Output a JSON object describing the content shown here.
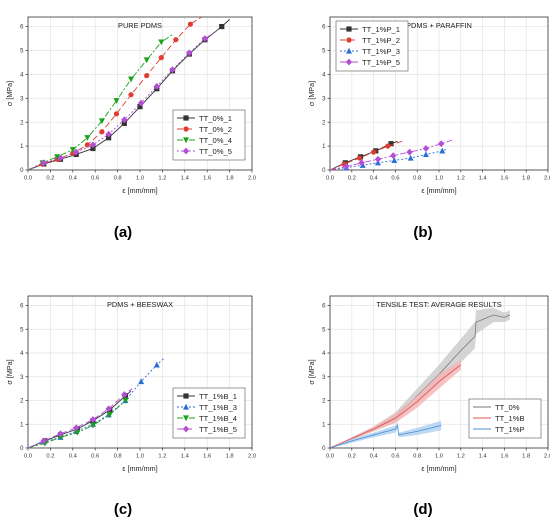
{
  "chart_data": [
    {
      "panel": "a",
      "type": "line",
      "title": "PURE PDMS",
      "xlabel": "ε [mm/mm]",
      "ylabel": "σ [MPa]",
      "xlim": [
        0,
        2.0
      ],
      "ylim": [
        0,
        6.4
      ],
      "xticks": [
        "0.0",
        "0.2",
        "0.4",
        "0.6",
        "0.8",
        "1.0",
        "1.2",
        "1.4",
        "1.6",
        "1.8",
        "2.0"
      ],
      "yticks": [
        "0",
        "1",
        "2",
        "3",
        "4",
        "5",
        "6"
      ],
      "legend": "bottom-right",
      "grid": true,
      "caption": "(a)",
      "series": [
        {
          "name": "TT_0%_1",
          "color": "#333333",
          "marker": "square",
          "dash": "solid",
          "x": [
            0,
            0.14,
            0.29,
            0.43,
            0.58,
            0.72,
            0.86,
            1.0,
            1.15,
            1.29,
            1.44,
            1.58,
            1.73,
            1.8
          ],
          "y": [
            0,
            0.25,
            0.45,
            0.65,
            0.9,
            1.35,
            1.95,
            2.65,
            3.4,
            4.15,
            4.85,
            5.45,
            6.0,
            6.3
          ]
        },
        {
          "name": "TT_0%_2",
          "color": "#e03c31",
          "marker": "circle",
          "dash": "6,3",
          "x": [
            0,
            0.13,
            0.26,
            0.4,
            0.53,
            0.66,
            0.79,
            0.92,
            1.06,
            1.19,
            1.32,
            1.45,
            1.55
          ],
          "y": [
            0,
            0.25,
            0.45,
            0.7,
            1.05,
            1.6,
            2.35,
            3.15,
            3.95,
            4.7,
            5.45,
            6.1,
            6.4
          ]
        },
        {
          "name": "TT_0%_4",
          "color": "#1aa31a",
          "marker": "triangle-down",
          "dash": "6,2,2,2",
          "x": [
            0,
            0.13,
            0.26,
            0.4,
            0.53,
            0.66,
            0.79,
            0.92,
            1.06,
            1.19,
            1.3
          ],
          "y": [
            0,
            0.3,
            0.55,
            0.85,
            1.35,
            2.05,
            2.9,
            3.8,
            4.6,
            5.35,
            5.7
          ]
        },
        {
          "name": "TT_0%_5",
          "color": "#b54ed6",
          "marker": "diamond",
          "dash": "2,2",
          "x": [
            0,
            0.14,
            0.29,
            0.43,
            0.58,
            0.72,
            0.86,
            1.01,
            1.15,
            1.29,
            1.44,
            1.58,
            1.68
          ],
          "y": [
            0,
            0.3,
            0.5,
            0.75,
            1.05,
            1.5,
            2.1,
            2.8,
            3.5,
            4.2,
            4.9,
            5.5,
            5.8
          ]
        }
      ]
    },
    {
      "panel": "b",
      "type": "line",
      "title": "PDMS + PARAFFIN",
      "xlabel": "ε [mm/mm]",
      "ylabel": "σ [MPa]",
      "xlim": [
        0,
        2.0
      ],
      "ylim": [
        0,
        6.4
      ],
      "xticks": [
        "0.0",
        "0.2",
        "0.4",
        "0.6",
        "0.8",
        "1.0",
        "1.2",
        "1.4",
        "1.6",
        "1.8",
        "2.0"
      ],
      "yticks": [
        "0",
        "1",
        "2",
        "3",
        "4",
        "5",
        "6"
      ],
      "legend": "top-left",
      "grid": true,
      "caption": "(b)",
      "series": [
        {
          "name": "TT_1%P_1",
          "color": "#333333",
          "marker": "square",
          "dash": "solid",
          "x": [
            0,
            0.14,
            0.28,
            0.42,
            0.56,
            0.62
          ],
          "y": [
            0,
            0.3,
            0.55,
            0.8,
            1.1,
            1.2
          ]
        },
        {
          "name": "TT_1%P_2",
          "color": "#e03c31",
          "marker": "circle",
          "dash": "6,3",
          "x": [
            0,
            0.13,
            0.27,
            0.4,
            0.53,
            0.66
          ],
          "y": [
            0,
            0.25,
            0.5,
            0.75,
            1.0,
            1.2
          ]
        },
        {
          "name": "TT_1%P_3",
          "color": "#2a6fd6",
          "marker": "triangle",
          "dash": "2,2",
          "x": [
            0,
            0.15,
            0.3,
            0.44,
            0.59,
            0.74,
            0.88,
            1.03,
            1.08
          ],
          "y": [
            0,
            0.1,
            0.2,
            0.3,
            0.4,
            0.5,
            0.65,
            0.8,
            0.9
          ]
        },
        {
          "name": "TT_1%P_5",
          "color": "#b54ed6",
          "marker": "diamond",
          "dash": "6,2,2,2",
          "x": [
            0,
            0.15,
            0.29,
            0.44,
            0.58,
            0.73,
            0.88,
            1.02,
            1.12
          ],
          "y": [
            0,
            0.15,
            0.3,
            0.45,
            0.6,
            0.75,
            0.9,
            1.1,
            1.25
          ]
        }
      ]
    },
    {
      "panel": "c",
      "type": "line",
      "title": "PDMS + BEESWAX",
      "xlabel": "ε [mm/mm]",
      "ylabel": "σ [MPa]",
      "xlim": [
        0,
        2.0
      ],
      "ylim": [
        0,
        6.4
      ],
      "xticks": [
        "0.0",
        "0.2",
        "0.4",
        "0.6",
        "0.8",
        "1.0",
        "1.2",
        "1.4",
        "1.6",
        "1.8",
        "2.0"
      ],
      "yticks": [
        "0",
        "1",
        "2",
        "3",
        "4",
        "5",
        "6"
      ],
      "legend": "bottom-right",
      "grid": true,
      "caption": "(c)",
      "series": [
        {
          "name": "TT_1%B_1",
          "color": "#333333",
          "marker": "square",
          "dash": "solid",
          "x": [
            0,
            0.15,
            0.29,
            0.44,
            0.58,
            0.73,
            0.87,
            0.92
          ],
          "y": [
            0,
            0.3,
            0.55,
            0.8,
            1.15,
            1.6,
            2.2,
            2.4
          ]
        },
        {
          "name": "TT_1%B_3",
          "color": "#2a6fd6",
          "marker": "triangle",
          "dash": "2,2",
          "x": [
            0,
            0.14,
            0.29,
            0.43,
            0.58,
            0.72,
            0.87,
            1.01,
            1.15,
            1.22
          ],
          "y": [
            0,
            0.25,
            0.45,
            0.7,
            1.0,
            1.4,
            2.0,
            2.8,
            3.5,
            3.8
          ]
        },
        {
          "name": "TT_1%B_4",
          "color": "#1aa31a",
          "marker": "triangle-down",
          "dash": "6,2,2,2",
          "x": [
            0,
            0.15,
            0.29,
            0.44,
            0.58,
            0.73,
            0.87,
            0.9
          ],
          "y": [
            0,
            0.2,
            0.45,
            0.65,
            0.95,
            1.4,
            2.0,
            2.1
          ]
        },
        {
          "name": "TT_1%B_5",
          "color": "#b54ed6",
          "marker": "diamond",
          "dash": "6,3",
          "x": [
            0,
            0.14,
            0.29,
            0.43,
            0.58,
            0.72,
            0.86,
            0.93
          ],
          "y": [
            0,
            0.3,
            0.6,
            0.85,
            1.2,
            1.65,
            2.25,
            2.5
          ]
        }
      ]
    },
    {
      "panel": "d",
      "type": "area",
      "title": "TENSILE TEST: AVERAGE RESULTS",
      "xlabel": "ε [mm/mm]",
      "ylabel": "σ [MPa]",
      "xlim": [
        0,
        2.0
      ],
      "ylim": [
        0,
        6.4
      ],
      "xticks": [
        "0.0",
        "0.2",
        "0.4",
        "0.6",
        "0.8",
        "1.0",
        "1.2",
        "1.4",
        "1.6",
        "1.8",
        "2.0"
      ],
      "yticks": [
        "0",
        "1",
        "2",
        "3",
        "4",
        "5",
        "6"
      ],
      "legend": "bottom-right",
      "grid": true,
      "caption": "(d)",
      "series": [
        {
          "name": "TT_0%",
          "color": "#777777",
          "fill": "#c9c9c9",
          "x": [
            0,
            0.2,
            0.4,
            0.6,
            0.8,
            1.0,
            1.2,
            1.33,
            1.34,
            1.5,
            1.6,
            1.65
          ],
          "y": [
            0,
            0.4,
            0.8,
            1.3,
            2.2,
            3.1,
            4.1,
            4.7,
            5.3,
            5.6,
            5.5,
            5.6
          ],
          "lower": [
            0,
            0.35,
            0.7,
            1.1,
            1.9,
            2.7,
            3.6,
            4.2,
            4.8,
            5.3,
            5.3,
            5.4
          ],
          "upper": [
            0,
            0.45,
            0.9,
            1.5,
            2.5,
            3.5,
            4.6,
            5.3,
            5.8,
            5.9,
            5.7,
            5.8
          ]
        },
        {
          "name": "TT_1%B",
          "color": "#e05050",
          "fill": "#f4b3b3",
          "x": [
            0,
            0.2,
            0.4,
            0.6,
            0.8,
            1.0,
            1.2
          ],
          "y": [
            0,
            0.4,
            0.8,
            1.25,
            1.95,
            2.8,
            3.5
          ],
          "lower": [
            0,
            0.35,
            0.7,
            1.05,
            1.7,
            2.5,
            3.3
          ],
          "upper": [
            0,
            0.45,
            0.9,
            1.45,
            2.2,
            3.1,
            3.7
          ]
        },
        {
          "name": "TT_1%P",
          "color": "#4a90d6",
          "fill": "#aed0ef",
          "x": [
            0,
            0.2,
            0.4,
            0.6,
            0.62,
            0.63,
            0.8,
            1.02
          ],
          "y": [
            0,
            0.3,
            0.55,
            0.8,
            0.95,
            0.55,
            0.7,
            0.95
          ],
          "lower": [
            0,
            0.22,
            0.45,
            0.65,
            0.8,
            0.45,
            0.55,
            0.75
          ],
          "upper": [
            0,
            0.38,
            0.65,
            0.95,
            1.1,
            0.65,
            0.85,
            1.15
          ]
        }
      ]
    }
  ]
}
